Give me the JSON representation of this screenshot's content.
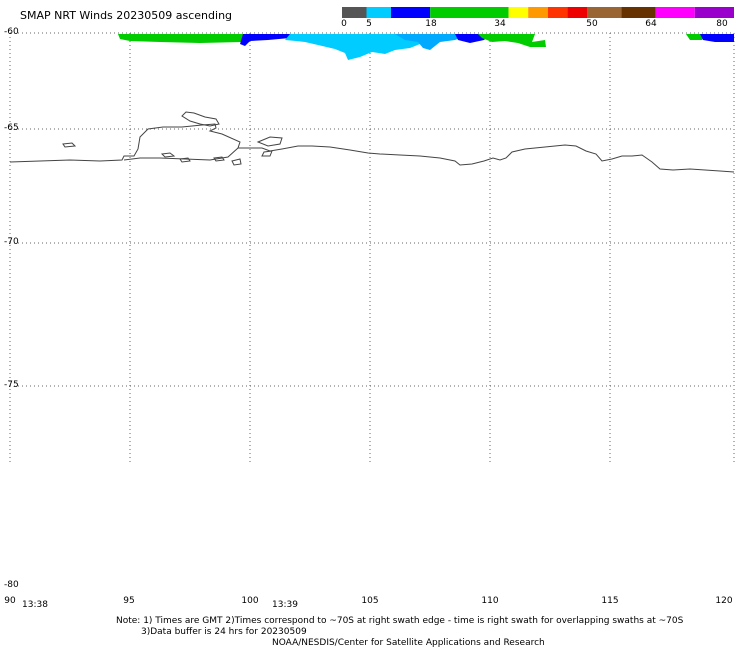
{
  "title": "SMAP NRT Winds 20230509 ascending",
  "colorbar": {
    "labels": [
      "0",
      "5",
      "18",
      "34",
      "50",
      "64",
      "80"
    ],
    "segments": [
      {
        "from": 0,
        "to": 5,
        "color": "#555555"
      },
      {
        "from": 5,
        "to": 10,
        "color": "#00ccff"
      },
      {
        "from": 10,
        "to": 18,
        "color": "#0000ff"
      },
      {
        "from": 18,
        "to": 34,
        "color": "#00cc00"
      },
      {
        "from": 34,
        "to": 38,
        "color": "#ffff00"
      },
      {
        "from": 38,
        "to": 42,
        "color": "#ff9900"
      },
      {
        "from": 42,
        "to": 46,
        "color": "#ff3300"
      },
      {
        "from": 46,
        "to": 50,
        "color": "#ee0000"
      },
      {
        "from": 50,
        "to": 57,
        "color": "#996633"
      },
      {
        "from": 57,
        "to": 64,
        "color": "#663300"
      },
      {
        "from": 64,
        "to": 72,
        "color": "#ff00ff"
      },
      {
        "from": 72,
        "to": 80,
        "color": "#9900cc"
      }
    ]
  },
  "latitude_labels": [
    "-60",
    "-65",
    "-70",
    "-75",
    "-80"
  ],
  "longitude_labels": [
    "90",
    "95",
    "100",
    "105",
    "110",
    "115",
    "120"
  ],
  "time_labels": [
    "13:38",
    "13:39"
  ],
  "notes": {
    "line1": "Note: 1) Times are GMT 2)Times correspond to ~70S at right swath edge - time is right swath for overlapping swaths at ~70S",
    "line2": "3)Data buffer is 24 hrs for 20230509",
    "line3": "NOAA/NESDIS/Center for Satellite Applications and Research"
  },
  "map": {
    "region": "Southern Ocean / Antarctic coast",
    "lon_range": [
      90,
      120
    ],
    "lat_range": [
      -80,
      -60
    ],
    "wind_swath_colors": [
      "#00cc00",
      "#0000ff",
      "#00ccff",
      "#00aaff"
    ]
  }
}
